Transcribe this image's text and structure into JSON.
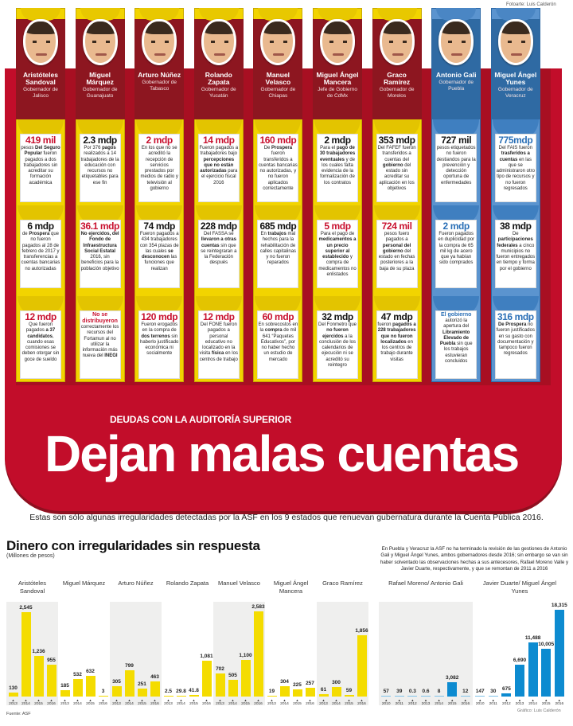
{
  "credits": {
    "photo": "Fotoarte: Luis Calderón",
    "graphic": "Gráfico: Luis Calderón",
    "source": "Fuente: ASF"
  },
  "colors": {
    "red": "#c20d2a",
    "yellow": "#f2d400",
    "blue": "#5b94cf",
    "bar_yellow": "#f4dc00",
    "bar_blue": "#0d8bd0"
  },
  "headline": {
    "kicker": "DEUDAS CON LA AUDITORÍA SUPERIOR",
    "title": "Dejan malas cuentas",
    "lede": "Estas son sólo algunas irregularidades detectadas por la ASF en los 9 estados que renuevan gubernatura durante la Cuenta Pública 2016."
  },
  "governors": [
    {
      "name": "Aristóteles Sandoval",
      "role": "Gobernador de Jalisco",
      "theme": "yellow",
      "cards": [
        {
          "amount": "419 mil",
          "accent": "red",
          "parts": [
            [
              "pesos ",
              0
            ],
            [
              "Del Seguro Popular",
              1
            ],
            [
              " fueron pagados a dos trabajadores sin acreditar su formación académica",
              0
            ]
          ]
        },
        {
          "amount": "6 mdp",
          "accent": "dark",
          "parts": [
            [
              "de ",
              0
            ],
            [
              "Prospera",
              1
            ],
            [
              " que no fueron pagados al 28 de febrero de 2017 y transferencias a cuentas bancarias no autorizadas",
              0
            ]
          ]
        },
        {
          "amount": "12 mdp",
          "accent": "red",
          "parts": [
            [
              "Que fueron pagados ",
              0
            ],
            [
              "a 37 candidatos",
              1
            ],
            [
              ", cuando esas comisiones se deben otorgar sin goce de sueldo",
              0
            ]
          ]
        }
      ]
    },
    {
      "name": "Miguel Márquez",
      "role": "Gobernador de Guanajuato",
      "theme": "yellow",
      "cards": [
        {
          "amount": "2.3 mdp",
          "accent": "dark",
          "parts": [
            [
              "Por 376 ",
              0
            ],
            [
              "pagos",
              1
            ],
            [
              " realizados a 14 trabajadores de la educación con recursos no etiquetables para ese fin",
              0
            ]
          ]
        },
        {
          "amount": "36.1 mdp",
          "accent": "red",
          "parts": [
            [
              "No ejercidos, del Fondo de Infraestructura Social Estatal",
              1
            ],
            [
              " 2016, sin beneficios para la población objetivo",
              0
            ]
          ]
        },
        {
          "amount": "No se distribuyeron",
          "accent": "red small",
          "parts": [
            [
              "correctamente los recursos del Fortamun al no utilizar la información más nueva del ",
              0
            ],
            [
              "INEGI",
              1
            ]
          ]
        }
      ]
    },
    {
      "name": "Arturo Núñez",
      "role": "Gobernador de Tabasco",
      "theme": "yellow",
      "cards": [
        {
          "amount": "2 mdp",
          "accent": "red",
          "parts": [
            [
              "En los que no se acreditó la recepción de servicios prestados por medios de radio y televisión al gobierno",
              0
            ]
          ]
        },
        {
          "amount": "74 mdp",
          "accent": "dark",
          "parts": [
            [
              "Fueron pagados a 434 trabajadores con 354 plazas de las cuales ",
              0
            ],
            [
              "se desconocen",
              1
            ],
            [
              " las funciones que realizan",
              0
            ]
          ]
        },
        {
          "amount": "120 mdp",
          "accent": "red",
          "parts": [
            [
              "Fueron erogados en la compra de ",
              0
            ],
            [
              "dos terrenos",
              1
            ],
            [
              " sin haberlo justificado económica ni socialmente",
              0
            ]
          ]
        }
      ]
    },
    {
      "name": "Rolando Zapata",
      "role": "Gobernador de Yucatán",
      "theme": "yellow",
      "cards": [
        {
          "amount": "14 mdp",
          "accent": "red",
          "parts": [
            [
              "Fueron pagados a trabajadores bajo ",
              0
            ],
            [
              "percepciones que no están autorizadas",
              1
            ],
            [
              " para el ejercicio fiscal 2016",
              0
            ]
          ]
        },
        {
          "amount": "228 mdp",
          "accent": "dark",
          "parts": [
            [
              "Del FASSA se ",
              0
            ],
            [
              "llevaron a otras cuentas",
              1
            ],
            [
              " sin que se reintegraran a la Federación después",
              0
            ]
          ]
        },
        {
          "amount": "12 mdp",
          "accent": "red",
          "parts": [
            [
              "Del FONE fueron pagados a personal educativo no localizado en la visita ",
              0
            ],
            [
              "física",
              1
            ],
            [
              " en los centros de trabajo",
              0
            ]
          ]
        }
      ]
    },
    {
      "name": "Manuel Velasco",
      "role": "Gobernador de Chiapas",
      "theme": "yellow",
      "cards": [
        {
          "amount": "160 mdp",
          "accent": "red",
          "parts": [
            [
              "De ",
              0
            ],
            [
              "Prospera",
              1
            ],
            [
              " fueron transferidos a cuentas bancarias no autorizadas, y no fueron aplicados correctamente",
              0
            ]
          ]
        },
        {
          "amount": "685 mdp",
          "accent": "dark",
          "parts": [
            [
              "En ",
              0
            ],
            [
              "trabajos",
              1
            ],
            [
              " mal hechos para la rehabilitación de calles capitalinas y no fueron reparados",
              0
            ]
          ]
        },
        {
          "amount": "60 mdp",
          "accent": "red",
          "parts": [
            [
              "En sobrecostos en la ",
              0
            ],
            [
              "compra",
              1
            ],
            [
              " de mil 641 “Paquetes Educativos”, por no haber hecho un estudio de mercado",
              0
            ]
          ]
        }
      ]
    },
    {
      "name": "Miguel Ángel Mancera",
      "role": "Jefe de Gobierno de CdMx",
      "theme": "yellow",
      "cards": [
        {
          "amount": "2 mdp",
          "accent": "dark",
          "parts": [
            [
              "Para el ",
              0
            ],
            [
              "pago de 30 trabajadores eventuales",
              1
            ],
            [
              " y de los cuales falta evidencia de la formalización de los contratos",
              0
            ]
          ]
        },
        {
          "amount": "5 mdp",
          "accent": "red",
          "parts": [
            [
              "Para el pago de ",
              0
            ],
            [
              "medicamentos a un precio superior al establecido",
              1
            ],
            [
              " y compra de medicamentos no enlistados",
              0
            ]
          ]
        },
        {
          "amount": "32 mdp",
          "accent": "dark",
          "parts": [
            [
              "Del Fonmetro que ",
              0
            ],
            [
              "no fueron ejercidos",
              1
            ],
            [
              " a la conclusión de los calendarios de ejecución ni se acreditó su reintegro",
              0
            ]
          ]
        }
      ]
    },
    {
      "name": "Graco Ramírez",
      "role": "Gobernador de Morelos",
      "theme": "yellow",
      "cards": [
        {
          "amount": "353 mdp",
          "accent": "dark",
          "parts": [
            [
              "Del FAFEF fueron transferidos a cuentas del ",
              0
            ],
            [
              "gobierno",
              1
            ],
            [
              " del estado sin acreditar su aplicación en los objetivos",
              0
            ]
          ]
        },
        {
          "amount": "724 mil",
          "accent": "red",
          "parts": [
            [
              "pesos fuero pagados a ",
              0
            ],
            [
              "personal del gobierno",
              1
            ],
            [
              " del estado en fechas posteriores a la baja de su plaza",
              0
            ]
          ]
        },
        {
          "amount": "47 mdp",
          "accent": "dark",
          "parts": [
            [
              "fueron ",
              0
            ],
            [
              "pagados a 228 trabajadores que no fueron localizados",
              1
            ],
            [
              " en los centros de trabajo durante visitas",
              0
            ]
          ]
        }
      ]
    },
    {
      "name": "Antonio Gali",
      "role": "Gobernador de Puebla",
      "theme": "blue",
      "cards": [
        {
          "amount": "727 mil",
          "accent": "dark",
          "parts": [
            [
              "pesos etiquetados no fueron destiandos para la prevención y detección oportuna de enfermedades",
              0
            ]
          ]
        },
        {
          "amount": "2 mdp",
          "accent": "blue",
          "parts": [
            [
              "Fueron pagados en duplicidad por la compra de 65 mil kg de acero que ya habían sido comprados",
              0
            ]
          ]
        },
        {
          "amount": "El gobierno",
          "accent": "blue small",
          "parts": [
            [
              "autorizó la apertura del ",
              0
            ],
            [
              "Libramiento Elevado de Puebla",
              1
            ],
            [
              " sin que los trabajos estuvieran concluidos",
              0
            ]
          ]
        }
      ]
    },
    {
      "name": "Miguel Ángel Yunes",
      "role": "Gobernador de Veracruz",
      "theme": "blue",
      "cards": [
        {
          "amount": "775mdp",
          "accent": "blue",
          "parts": [
            [
              "Del FAIS fueron ",
              0
            ],
            [
              "trasferidos a cuentas",
              1
            ],
            [
              " en las que se administraron otro tipo de recursos y no fueron regresados",
              0
            ]
          ]
        },
        {
          "amount": "38 mdp",
          "accent": "dark",
          "parts": [
            [
              "De ",
              0
            ],
            [
              "participaciones federales",
              1
            ],
            [
              " a cinco municipios no fueron entregados en tiempo y forma por el gobierno",
              0
            ]
          ]
        },
        {
          "amount": "316 mdp",
          "accent": "blue",
          "parts": [
            [
              "De Prospera",
              1
            ],
            [
              " no fueron justificados en su gasto con documentación y tampoco fueron regresados",
              0
            ]
          ]
        }
      ]
    }
  ],
  "chart_data": [
    {
      "type": "bar",
      "title": "Dinero con irregularidades sin respuesta",
      "subtitle": "(Millones de pesos)",
      "ylim": [
        0,
        2700
      ],
      "grid": false,
      "groups": [
        {
          "label": "Aristóteles Sandoval",
          "x": [
            "2013",
            "2014",
            "2015",
            "2016"
          ],
          "values": [
            130,
            2545,
            1236,
            955
          ],
          "labels": [
            "130",
            "2,545",
            "1,236",
            "955"
          ]
        },
        {
          "label": "Miguel Márquez",
          "x": [
            "2013",
            "2014",
            "2015",
            "2016"
          ],
          "values": [
            185,
            532,
            632,
            3
          ],
          "labels": [
            "185",
            "532",
            "632",
            "3"
          ]
        },
        {
          "label": "Arturo Núñez",
          "x": [
            "2013",
            "2014",
            "2015",
            "2016"
          ],
          "values": [
            305,
            799,
            251,
            463
          ],
          "labels": [
            "305",
            "799",
            "251",
            "463"
          ]
        },
        {
          "label": "Rolando Zapata",
          "x": [
            "2013",
            "2014",
            "2015",
            "2016"
          ],
          "values": [
            2.5,
            29.8,
            41.8,
            1081
          ],
          "labels": [
            "2.5",
            "29.8",
            "41.8",
            "1,081"
          ]
        },
        {
          "label": "Manuel Velasco",
          "x": [
            "2013",
            "2014",
            "2015",
            "2016"
          ],
          "values": [
            702,
            505,
            1100,
            2583
          ],
          "labels": [
            "702",
            "505",
            "1,100",
            "2,583"
          ]
        },
        {
          "label": "Miguel Ángel Mancera",
          "x": [
            "2013",
            "2014",
            "2015",
            "2016"
          ],
          "values": [
            19,
            304,
            225,
            257
          ],
          "labels": [
            "19",
            "304",
            "225",
            "257"
          ]
        },
        {
          "label": "Graco Ramírez",
          "x": [
            "2013",
            "2014",
            "2015",
            "2016"
          ],
          "values": [
            61,
            300,
            59,
            1856
          ],
          "labels": [
            "61",
            "300",
            "59",
            "1,856"
          ]
        }
      ]
    },
    {
      "type": "bar",
      "note": "En Puebla y Veracruz la ASF no ha terminado la revisión de las gestiones de Antonio Gali y Miguel Ángel Yunes, ambos gobernadores desde 2016; sin embargo se van sin haber solventado las observaciones hechas a sus antecesores, Rafael Moreno Valle y Javier Duarte, respectivamente, y que se remontan de 2011 a 2016",
      "ylim": [
        0,
        18800
      ],
      "grid": false,
      "groups": [
        {
          "label": "Rafael Moreno/ Antonio Gali",
          "x": [
            "2010",
            "2011",
            "2012",
            "2013",
            "2014",
            "2015",
            "2016"
          ],
          "values": [
            57,
            39,
            0.3,
            0.6,
            8,
            3082,
            12
          ],
          "labels": [
            "57",
            "39",
            "0.3",
            "0.6",
            "8",
            "3,082",
            "12"
          ]
        },
        {
          "label": "Javier Duarte/ Miguel Ángel Yunes",
          "x": [
            "2010",
            "2011",
            "2012",
            "2013",
            "2014",
            "2015",
            "2016"
          ],
          "values": [
            147,
            30,
            675,
            6690,
            11488,
            10005,
            18315
          ],
          "labels": [
            "147",
            "30",
            "675",
            "6,690",
            "11,488",
            "10,005",
            "18,315"
          ]
        }
      ]
    }
  ]
}
